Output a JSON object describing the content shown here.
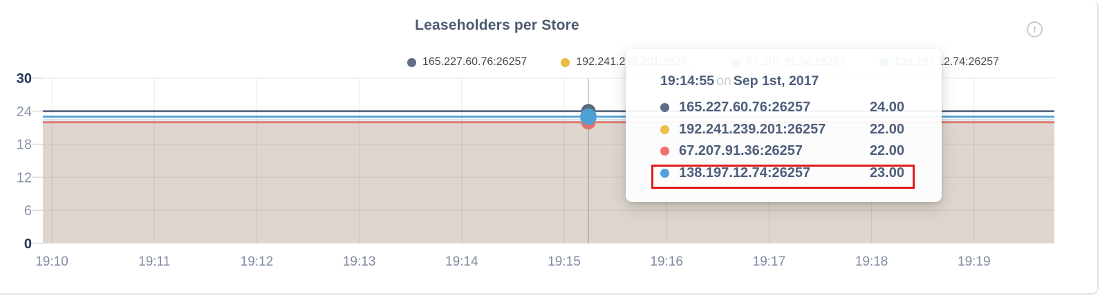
{
  "header": {
    "title": "Leaseholders per Store",
    "info_icon": "!"
  },
  "legend": {
    "items": [
      {
        "label": "165.227.60.76:26257",
        "color": "#5f6c87"
      },
      {
        "label": "192.241.239.201:2625…",
        "color": "#ecbc40"
      },
      {
        "label": "67.207.91.36:26257",
        "color": "#f0726d"
      },
      {
        "label": "138.197.12.74:26257",
        "color": "#4ea3dc"
      }
    ]
  },
  "tooltip": {
    "time": "19:14:55",
    "connector": "on",
    "date": "Sep 1st, 2017",
    "highlight_color": "#e11c1c",
    "rows": [
      {
        "name": "165.227.60.76:26257",
        "value": "24.00",
        "color": "#5f6c87",
        "highlighted": false
      },
      {
        "name": "192.241.239.201:26257",
        "value": "22.00",
        "color": "#eebd4a",
        "highlighted": false
      },
      {
        "name": "67.207.91.36:26257",
        "value": "22.00",
        "color": "#f4706b",
        "highlighted": false
      },
      {
        "name": "138.197.12.74:26257",
        "value": "23.00",
        "color": "#4ea3dc",
        "highlighted": true
      }
    ]
  },
  "chart_data": {
    "type": "line",
    "title": "Leaseholders per Store",
    "x_ticks": [
      "19:10",
      "19:11",
      "19:12",
      "19:13",
      "19:14",
      "19:15",
      "19:16",
      "19:17",
      "19:18",
      "19:19"
    ],
    "y_ticks": [
      0,
      6,
      12,
      18,
      24,
      30
    ],
    "ylim": [
      0,
      30
    ],
    "grid": true,
    "legend_position": "top",
    "hover_time": "19:14:55",
    "series": [
      {
        "name": "165.227.60.76:26257",
        "color": "#5a6880",
        "value": 24
      },
      {
        "name": "192.241.239.201:26257",
        "color": "#eebd4a",
        "value": 22
      },
      {
        "name": "67.207.91.36:26257",
        "color": "#e0706c",
        "value": 22
      },
      {
        "name": "138.197.12.74:26257",
        "color": "#4e9fd2",
        "value": 23
      }
    ],
    "area": {
      "below_value": 22,
      "color": "#ded6ce"
    }
  }
}
